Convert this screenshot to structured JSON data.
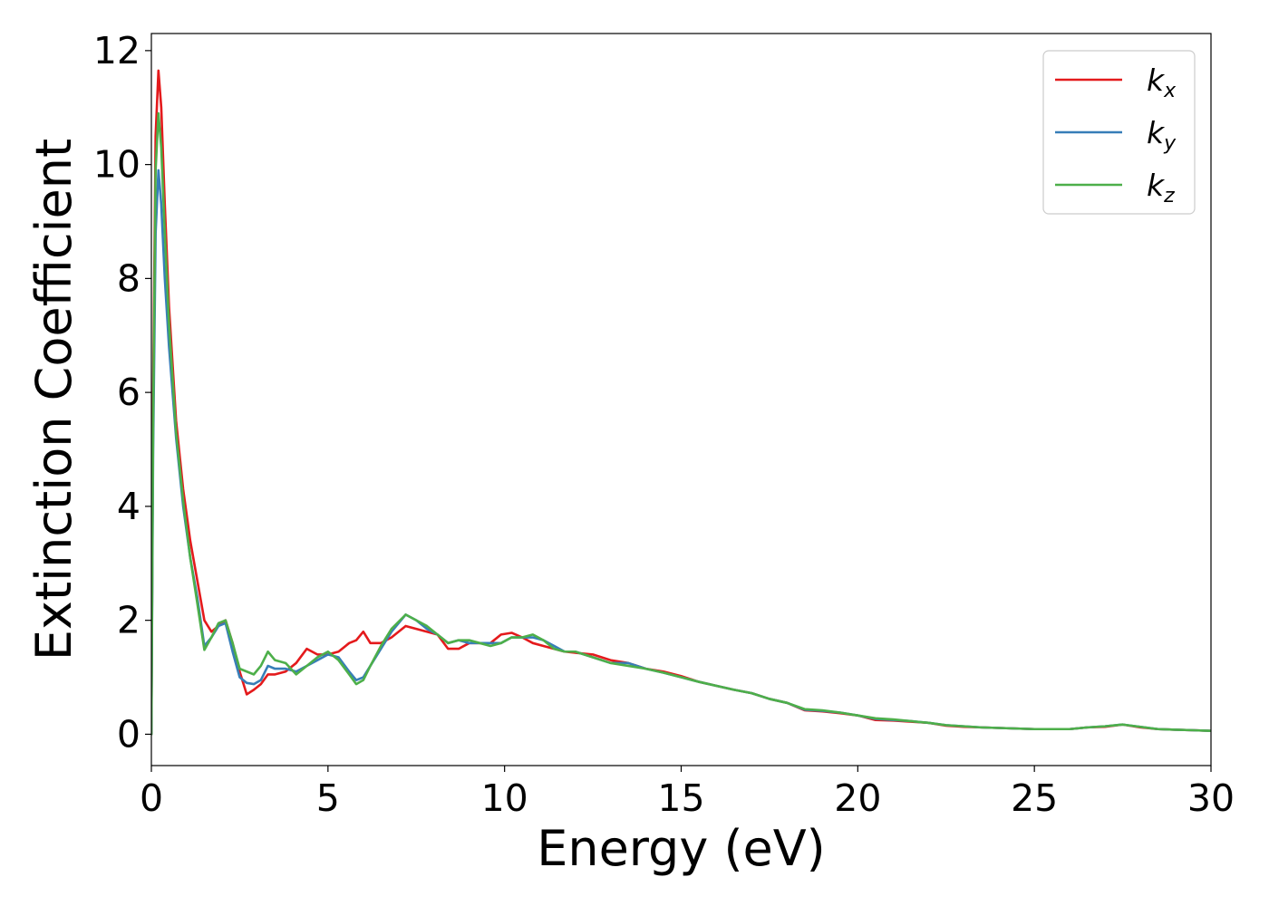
{
  "chart_data": {
    "type": "line",
    "xlabel": "Energy (eV)",
    "ylabel": "Extinction Coefficient",
    "xlim": [
      0,
      30
    ],
    "ylim": [
      -0.55,
      12.3
    ],
    "xticks": [
      0,
      5,
      10,
      15,
      20,
      25,
      30
    ],
    "yticks": [
      0,
      2,
      4,
      6,
      8,
      10,
      12
    ],
    "grid": false,
    "legend_position": "top-right",
    "series": [
      {
        "name": "k_x",
        "label_main": "k",
        "label_sub": "x",
        "color": "#e41a1c",
        "x": [
          0,
          0.05,
          0.12,
          0.2,
          0.28,
          0.38,
          0.5,
          0.7,
          0.9,
          1.1,
          1.3,
          1.5,
          1.7,
          1.9,
          2.1,
          2.3,
          2.5,
          2.7,
          2.9,
          3.1,
          3.3,
          3.5,
          3.8,
          4.1,
          4.4,
          4.7,
          5.0,
          5.3,
          5.6,
          5.8,
          6.0,
          6.2,
          6.5,
          6.8,
          7.2,
          7.5,
          7.8,
          8.1,
          8.4,
          8.7,
          9.0,
          9.3,
          9.6,
          9.9,
          10.2,
          10.5,
          10.8,
          11.1,
          11.4,
          11.7,
          12.0,
          12.5,
          13.0,
          13.5,
          14.0,
          14.5,
          15.0,
          15.5,
          16.0,
          16.5,
          17.0,
          17.5,
          18.0,
          18.5,
          19.0,
          19.5,
          20.0,
          20.5,
          21.0,
          21.5,
          22.0,
          22.5,
          23.0,
          23.5,
          24.0,
          24.5,
          25.0,
          25.5,
          26.0,
          26.5,
          27.0,
          27.5,
          28.0,
          28.5,
          29.0,
          29.5,
          30.0
        ],
        "values": [
          0,
          6.0,
          10.5,
          11.65,
          11.0,
          9.3,
          7.5,
          5.5,
          4.3,
          3.4,
          2.7,
          2.0,
          1.8,
          1.9,
          2.0,
          1.6,
          1.1,
          0.7,
          0.78,
          0.88,
          1.05,
          1.05,
          1.1,
          1.25,
          1.5,
          1.4,
          1.4,
          1.45,
          1.6,
          1.65,
          1.8,
          1.6,
          1.6,
          1.7,
          1.9,
          1.85,
          1.8,
          1.75,
          1.5,
          1.5,
          1.6,
          1.6,
          1.6,
          1.75,
          1.78,
          1.7,
          1.6,
          1.55,
          1.5,
          1.45,
          1.43,
          1.4,
          1.3,
          1.25,
          1.15,
          1.1,
          1.02,
          0.92,
          0.85,
          0.78,
          0.72,
          0.62,
          0.55,
          0.42,
          0.4,
          0.37,
          0.33,
          0.25,
          0.24,
          0.22,
          0.2,
          0.15,
          0.13,
          0.12,
          0.11,
          0.1,
          0.09,
          0.09,
          0.09,
          0.12,
          0.13,
          0.17,
          0.12,
          0.09,
          0.08,
          0.07,
          0.06
        ]
      },
      {
        "name": "k_y",
        "label_main": "k",
        "label_sub": "y",
        "color": "#377eb8",
        "x": [
          0,
          0.05,
          0.12,
          0.2,
          0.28,
          0.38,
          0.5,
          0.7,
          0.9,
          1.1,
          1.3,
          1.5,
          1.7,
          1.9,
          2.1,
          2.3,
          2.5,
          2.7,
          2.9,
          3.1,
          3.3,
          3.5,
          3.8,
          4.1,
          4.4,
          4.7,
          5.0,
          5.3,
          5.6,
          5.8,
          6.0,
          6.2,
          6.5,
          6.8,
          7.2,
          7.5,
          7.8,
          8.1,
          8.4,
          8.7,
          9.0,
          9.3,
          9.6,
          9.9,
          10.2,
          10.5,
          10.8,
          11.1,
          11.4,
          11.7,
          12.0,
          12.5,
          13.0,
          13.5,
          14.0,
          14.5,
          15.0,
          15.5,
          16.0,
          16.5,
          17.0,
          17.5,
          18.0,
          18.5,
          19.0,
          19.5,
          20.0,
          20.5,
          21.0,
          21.5,
          22.0,
          22.5,
          23.0,
          23.5,
          24.0,
          24.5,
          25.0,
          25.5,
          26.0,
          26.5,
          27.0,
          27.5,
          28.0,
          28.5,
          29.0,
          29.5,
          30.0
        ],
        "values": [
          0,
          5.0,
          8.8,
          9.9,
          9.3,
          8.0,
          6.8,
          5.2,
          4.0,
          3.1,
          2.4,
          1.55,
          1.7,
          1.9,
          1.95,
          1.45,
          1.0,
          0.9,
          0.88,
          0.95,
          1.2,
          1.15,
          1.15,
          1.1,
          1.2,
          1.3,
          1.4,
          1.35,
          1.1,
          0.95,
          1.0,
          1.2,
          1.5,
          1.8,
          2.1,
          2.0,
          1.85,
          1.75,
          1.6,
          1.65,
          1.6,
          1.6,
          1.6,
          1.6,
          1.7,
          1.7,
          1.7,
          1.65,
          1.55,
          1.45,
          1.45,
          1.35,
          1.25,
          1.25,
          1.15,
          1.08,
          1.0,
          0.92,
          0.85,
          0.78,
          0.72,
          0.62,
          0.55,
          0.43,
          0.41,
          0.38,
          0.33,
          0.27,
          0.25,
          0.23,
          0.2,
          0.16,
          0.14,
          0.12,
          0.11,
          0.1,
          0.09,
          0.09,
          0.09,
          0.12,
          0.14,
          0.17,
          0.13,
          0.09,
          0.08,
          0.07,
          0.06
        ]
      },
      {
        "name": "k_z",
        "label_main": "k",
        "label_sub": "z",
        "color": "#4daf4a",
        "x": [
          0,
          0.05,
          0.12,
          0.2,
          0.28,
          0.38,
          0.5,
          0.7,
          0.9,
          1.1,
          1.3,
          1.5,
          1.7,
          1.9,
          2.1,
          2.3,
          2.5,
          2.7,
          2.9,
          3.1,
          3.3,
          3.5,
          3.8,
          4.1,
          4.4,
          4.7,
          5.0,
          5.3,
          5.6,
          5.8,
          6.0,
          6.2,
          6.5,
          6.8,
          7.2,
          7.5,
          7.8,
          8.1,
          8.4,
          8.7,
          9.0,
          9.3,
          9.6,
          9.9,
          10.2,
          10.5,
          10.8,
          11.1,
          11.4,
          11.7,
          12.0,
          12.5,
          13.0,
          13.5,
          14.0,
          14.5,
          15.0,
          15.5,
          16.0,
          16.5,
          17.0,
          17.5,
          18.0,
          18.5,
          19.0,
          19.5,
          20.0,
          20.5,
          21.0,
          21.5,
          22.0,
          22.5,
          23.0,
          23.5,
          24.0,
          24.5,
          25.0,
          25.5,
          26.0,
          26.5,
          27.0,
          27.5,
          28.0,
          28.5,
          29.0,
          29.5,
          30.0
        ],
        "values": [
          0,
          5.5,
          9.9,
          10.9,
          10.3,
          8.8,
          7.2,
          5.3,
          4.1,
          3.1,
          2.3,
          1.48,
          1.7,
          1.95,
          2.0,
          1.6,
          1.15,
          1.1,
          1.05,
          1.2,
          1.45,
          1.3,
          1.25,
          1.05,
          1.2,
          1.35,
          1.45,
          1.3,
          1.05,
          0.88,
          0.95,
          1.2,
          1.55,
          1.85,
          2.1,
          2.0,
          1.9,
          1.75,
          1.6,
          1.65,
          1.65,
          1.6,
          1.55,
          1.6,
          1.7,
          1.7,
          1.75,
          1.65,
          1.5,
          1.45,
          1.45,
          1.35,
          1.25,
          1.2,
          1.15,
          1.08,
          1.0,
          0.92,
          0.85,
          0.78,
          0.72,
          0.62,
          0.55,
          0.44,
          0.42,
          0.38,
          0.33,
          0.28,
          0.26,
          0.23,
          0.2,
          0.16,
          0.14,
          0.12,
          0.11,
          0.1,
          0.09,
          0.09,
          0.09,
          0.12,
          0.14,
          0.17,
          0.13,
          0.09,
          0.08,
          0.07,
          0.06
        ]
      }
    ]
  }
}
